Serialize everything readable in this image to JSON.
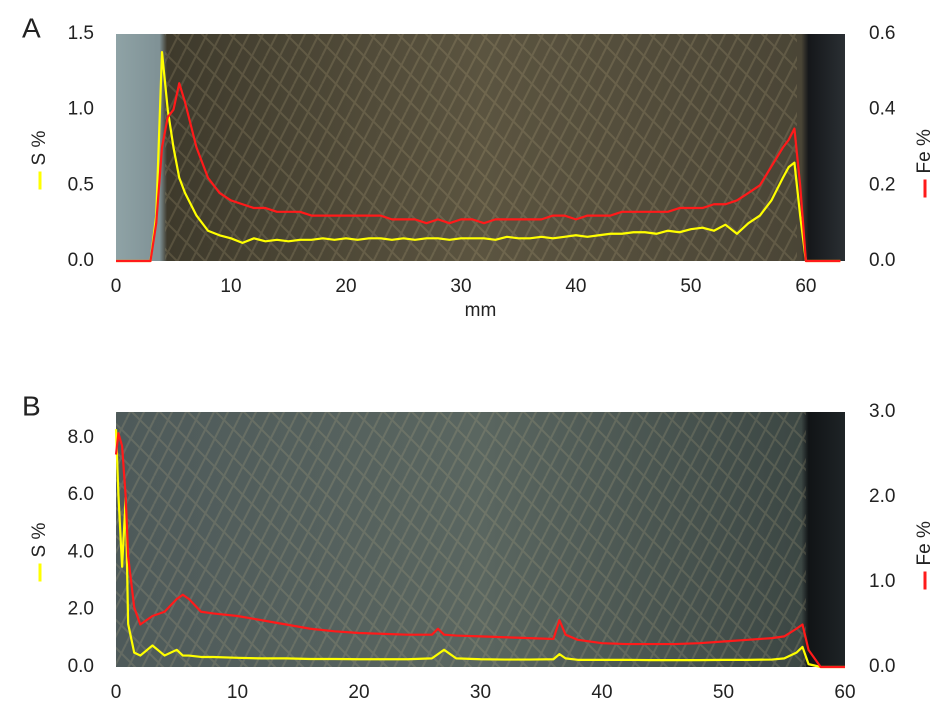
{
  "chart_data": [
    {
      "type": "line",
      "panel_label": "A",
      "xlabel": "mm",
      "ylabel": "S %",
      "y2label": "Fe %",
      "xlim": [
        0,
        63.4
      ],
      "xticks": [
        0,
        10,
        20,
        30,
        40,
        50,
        60
      ],
      "ylim": [
        0,
        1.5
      ],
      "yticks": [
        {
          "value": 0,
          "label": "0.0"
        },
        0.5,
        {
          "value": 1,
          "label": "1.0"
        },
        1.5
      ],
      "y2lim": [
        0,
        0.6
      ],
      "y2ticks": [
        {
          "value": 0,
          "label": "0.0"
        },
        0.2,
        0.4,
        0.6
      ],
      "x": [
        0,
        1,
        2,
        3,
        3.5,
        4,
        4.5,
        5,
        5.5,
        6,
        7,
        8,
        9,
        10,
        11,
        12,
        13,
        14,
        15,
        16,
        17,
        18,
        19,
        20,
        21,
        22,
        23,
        24,
        25,
        26,
        27,
        28,
        29,
        30,
        31,
        32,
        33,
        34,
        35,
        36,
        37,
        38,
        39,
        40,
        41,
        42,
        43,
        44,
        45,
        46,
        47,
        48,
        49,
        50,
        51,
        52,
        53,
        54,
        55,
        56,
        57,
        58,
        58.5,
        59,
        59.5,
        60,
        61,
        62,
        63
      ],
      "series": [
        {
          "name": "S %",
          "color": "#ffff00",
          "values": [
            0,
            0,
            0,
            0,
            0.3,
            1.38,
            1.0,
            0.75,
            0.55,
            0.45,
            0.3,
            0.2,
            0.17,
            0.15,
            0.12,
            0.15,
            0.13,
            0.14,
            0.13,
            0.14,
            0.14,
            0.15,
            0.14,
            0.15,
            0.14,
            0.15,
            0.15,
            0.14,
            0.15,
            0.14,
            0.15,
            0.15,
            0.14,
            0.15,
            0.15,
            0.15,
            0.14,
            0.16,
            0.15,
            0.15,
            0.16,
            0.15,
            0.16,
            0.17,
            0.16,
            0.17,
            0.18,
            0.18,
            0.19,
            0.19,
            0.18,
            0.2,
            0.19,
            0.21,
            0.22,
            0.2,
            0.24,
            0.18,
            0.25,
            0.3,
            0.4,
            0.55,
            0.62,
            0.65,
            0.3,
            0,
            0,
            0,
            0
          ]
        },
        {
          "name": "Fe %",
          "color": "#ff1a1a",
          "axis": "y2",
          "values": [
            0,
            0,
            0,
            0,
            0.1,
            0.3,
            0.38,
            0.4,
            0.47,
            0.42,
            0.3,
            0.22,
            0.18,
            0.16,
            0.15,
            0.14,
            0.14,
            0.13,
            0.13,
            0.13,
            0.12,
            0.12,
            0.12,
            0.12,
            0.12,
            0.12,
            0.12,
            0.11,
            0.11,
            0.11,
            0.1,
            0.11,
            0.1,
            0.11,
            0.11,
            0.1,
            0.11,
            0.11,
            0.11,
            0.11,
            0.11,
            0.12,
            0.12,
            0.11,
            0.12,
            0.12,
            0.12,
            0.13,
            0.13,
            0.13,
            0.13,
            0.13,
            0.14,
            0.14,
            0.14,
            0.15,
            0.15,
            0.16,
            0.18,
            0.2,
            0.25,
            0.3,
            0.32,
            0.35,
            0.2,
            0,
            0,
            0,
            0
          ]
        }
      ]
    },
    {
      "type": "line",
      "panel_label": "B",
      "xlabel": "mm",
      "ylabel": "S %",
      "y2label": "Fe %",
      "xlim": [
        0,
        60
      ],
      "xticks": [
        0,
        10,
        20,
        30,
        40,
        50,
        60
      ],
      "ylim": [
        0,
        8.9
      ],
      "yticks": [
        {
          "value": 0,
          "label": "0.0"
        },
        {
          "value": 2,
          "label": "2.0"
        },
        {
          "value": 4,
          "label": "4.0"
        },
        {
          "value": 6,
          "label": "6.0"
        },
        {
          "value": 8,
          "label": "8.0"
        }
      ],
      "y2lim": [
        0,
        3
      ],
      "y2ticks": [
        {
          "value": 0,
          "label": "0.0"
        },
        {
          "value": 1,
          "label": "1.0"
        },
        {
          "value": 2,
          "label": "2.0"
        },
        {
          "value": 3,
          "label": "3.0"
        }
      ],
      "x": [
        0,
        0.2,
        0.5,
        0.8,
        1,
        1.5,
        2,
        3,
        4,
        5,
        5.5,
        6,
        7,
        8,
        10,
        12,
        14,
        16,
        18,
        20,
        22,
        24,
        26,
        26.5,
        27,
        28,
        30,
        32,
        34,
        36,
        36.5,
        37,
        38,
        40,
        42,
        44,
        46,
        48,
        50,
        52,
        54,
        55,
        56,
        56.5,
        57,
        58,
        59,
        60
      ],
      "series": [
        {
          "name": "S %",
          "color": "#ffff00",
          "values": [
            8.3,
            6.0,
            3.5,
            5.9,
            1.5,
            0.5,
            0.4,
            0.75,
            0.4,
            0.6,
            0.4,
            0.4,
            0.35,
            0.35,
            0.32,
            0.3,
            0.3,
            0.28,
            0.28,
            0.27,
            0.27,
            0.27,
            0.3,
            0.45,
            0.6,
            0.3,
            0.27,
            0.26,
            0.26,
            0.27,
            0.45,
            0.3,
            0.25,
            0.25,
            0.25,
            0.24,
            0.24,
            0.24,
            0.25,
            0.25,
            0.26,
            0.3,
            0.5,
            0.7,
            0.1,
            0,
            0,
            0
          ]
        },
        {
          "name": "Fe %",
          "color": "#ff1a1a",
          "axis": "y2",
          "values": [
            2.5,
            2.75,
            2.6,
            2.0,
            1.3,
            0.7,
            0.5,
            0.6,
            0.65,
            0.8,
            0.85,
            0.8,
            0.65,
            0.63,
            0.6,
            0.55,
            0.5,
            0.45,
            0.42,
            0.4,
            0.39,
            0.38,
            0.38,
            0.45,
            0.38,
            0.37,
            0.36,
            0.35,
            0.34,
            0.33,
            0.55,
            0.38,
            0.32,
            0.28,
            0.27,
            0.27,
            0.27,
            0.28,
            0.3,
            0.32,
            0.34,
            0.36,
            0.45,
            0.5,
            0.2,
            0,
            0,
            0
          ]
        }
      ]
    }
  ]
}
